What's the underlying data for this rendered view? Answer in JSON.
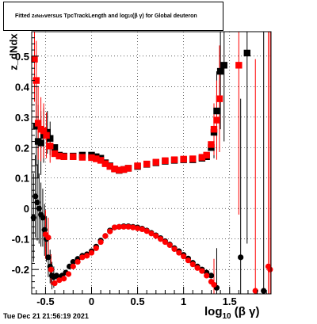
{
  "title": {
    "prefix": "Fitted  z",
    "sub1": "dNdx",
    "middle": "  versus TpcTrackLength and log",
    "sub2": "10",
    "suffix": "(β γ) for Global deuteron"
  },
  "footer": {
    "timestamp": "Tue Dec 21 21:56:19 2021"
  },
  "chart_data": {
    "type": "scatter",
    "title": "Fitted z_dNdx versus TpcTrackLength and log10(βγ) for Global deuteron",
    "xlabel_main": "log",
    "xlabel_sub": "10",
    "xlabel_rest": " (β γ)",
    "ylabel": "z_dNdx",
    "xlim": [
      -0.65,
      1.95
    ],
    "ylim": [
      -0.28,
      0.58
    ],
    "grid": true,
    "xticks": [
      {
        "v": -0.5,
        "label": "-0.5"
      },
      {
        "v": 0,
        "label": "0"
      },
      {
        "v": 0.5,
        "label": "0.5"
      },
      {
        "v": 1,
        "label": "1"
      },
      {
        "v": 1.5,
        "label": "1.5"
      }
    ],
    "yticks": [
      {
        "v": -0.2,
        "label": "-0.2"
      },
      {
        "v": -0.1,
        "label": "-0.1"
      },
      {
        "v": 0,
        "label": "0"
      },
      {
        "v": 0.1,
        "label": "0.1"
      },
      {
        "v": 0.2,
        "label": "0.2"
      },
      {
        "v": 0.3,
        "label": "0.3"
      },
      {
        "v": 0.4,
        "label": "0.4"
      },
      {
        "v": 0.5,
        "label": "0.5"
      }
    ],
    "series": [
      {
        "color": "#000000",
        "marker": "circle",
        "points": [
          [
            -0.63,
            -0.03
          ],
          [
            -0.61,
            0.04
          ],
          [
            -0.59,
            0.02
          ],
          [
            -0.57,
            0.0
          ],
          [
            -0.55,
            -0.02
          ],
          [
            -0.53,
            -0.03
          ],
          [
            -0.51,
            -0.07
          ],
          [
            -0.49,
            -0.1
          ],
          [
            -0.47,
            -0.16
          ],
          [
            -0.45,
            -0.19
          ],
          [
            -0.43,
            -0.22
          ],
          [
            -0.41,
            -0.225
          ],
          [
            -0.38,
            -0.22
          ],
          [
            -0.35,
            -0.23
          ],
          [
            -0.32,
            -0.22
          ],
          [
            -0.28,
            -0.21
          ],
          [
            -0.24,
            -0.19
          ],
          [
            -0.2,
            -0.175
          ],
          [
            -0.15,
            -0.165
          ],
          [
            -0.1,
            -0.155
          ],
          [
            -0.05,
            -0.15
          ],
          [
            0.0,
            -0.14
          ],
          [
            0.05,
            -0.125
          ],
          [
            0.1,
            -0.105
          ],
          [
            0.15,
            -0.09
          ],
          [
            0.2,
            -0.072
          ],
          [
            0.25,
            -0.062
          ],
          [
            0.3,
            -0.06
          ],
          [
            0.35,
            -0.058
          ],
          [
            0.4,
            -0.058
          ],
          [
            0.45,
            -0.06
          ],
          [
            0.5,
            -0.062
          ],
          [
            0.55,
            -0.066
          ],
          [
            0.6,
            -0.072
          ],
          [
            0.65,
            -0.08
          ],
          [
            0.7,
            -0.088
          ],
          [
            0.75,
            -0.097
          ],
          [
            0.8,
            -0.107
          ],
          [
            0.85,
            -0.118
          ],
          [
            0.9,
            -0.13
          ],
          [
            0.95,
            -0.14
          ],
          [
            1.0,
            -0.152
          ],
          [
            1.05,
            -0.164
          ],
          [
            1.1,
            -0.178
          ],
          [
            1.15,
            -0.19
          ],
          [
            1.2,
            -0.2
          ],
          [
            1.25,
            -0.21
          ],
          [
            1.3,
            -0.22
          ],
          [
            1.36,
            -0.26
          ],
          [
            1.62,
            -0.16
          ],
          [
            1.87,
            -0.27
          ]
        ]
      },
      {
        "color": "#000000",
        "marker": "square",
        "points": [
          [
            -0.6,
            0.27
          ],
          [
            -0.58,
            0.22
          ],
          [
            -0.55,
            0.215
          ],
          [
            -0.52,
            0.24
          ],
          [
            -0.48,
            0.25
          ],
          [
            -0.45,
            0.23
          ],
          [
            -0.4,
            0.2
          ],
          [
            -0.35,
            0.175
          ],
          [
            -0.3,
            0.172
          ],
          [
            -0.2,
            0.172
          ],
          [
            -0.1,
            0.175
          ],
          [
            0.0,
            0.175
          ],
          [
            0.05,
            0.17
          ],
          [
            0.1,
            0.165
          ],
          [
            0.15,
            0.15
          ],
          [
            0.2,
            0.14
          ],
          [
            0.25,
            0.13
          ],
          [
            0.3,
            0.125
          ],
          [
            0.35,
            0.128
          ],
          [
            0.4,
            0.132
          ],
          [
            0.5,
            0.138
          ],
          [
            0.6,
            0.145
          ],
          [
            0.7,
            0.15
          ],
          [
            0.8,
            0.155
          ],
          [
            0.9,
            0.158
          ],
          [
            1.0,
            0.16
          ],
          [
            1.1,
            0.16
          ],
          [
            1.2,
            0.165
          ],
          [
            1.25,
            0.17
          ],
          [
            1.3,
            0.2
          ],
          [
            1.33,
            0.25
          ],
          [
            1.36,
            0.32
          ],
          [
            1.4,
            0.45
          ],
          [
            1.44,
            0.47
          ],
          [
            1.69,
            0.51
          ]
        ]
      },
      {
        "color": "#ff0000",
        "marker": "circle",
        "points": [
          [
            -0.5,
            -0.085
          ],
          [
            -0.47,
            -0.095
          ],
          [
            -0.44,
            -0.2
          ],
          [
            -0.4,
            -0.245
          ],
          [
            -0.35,
            -0.235
          ],
          [
            -0.3,
            -0.23
          ],
          [
            -0.25,
            -0.215
          ],
          [
            -0.2,
            -0.19
          ],
          [
            -0.15,
            -0.175
          ],
          [
            -0.1,
            -0.16
          ],
          [
            -0.05,
            -0.155
          ],
          [
            0.0,
            -0.145
          ],
          [
            0.05,
            -0.13
          ],
          [
            0.1,
            -0.11
          ],
          [
            0.15,
            -0.09
          ],
          [
            0.2,
            -0.075
          ],
          [
            0.25,
            -0.062
          ],
          [
            0.3,
            -0.06
          ],
          [
            0.35,
            -0.06
          ],
          [
            0.4,
            -0.06
          ],
          [
            0.45,
            -0.062
          ],
          [
            0.5,
            -0.065
          ],
          [
            0.55,
            -0.068
          ],
          [
            0.6,
            -0.074
          ],
          [
            0.65,
            -0.082
          ],
          [
            0.7,
            -0.09
          ],
          [
            0.75,
            -0.1
          ],
          [
            0.8,
            -0.11
          ],
          [
            0.85,
            -0.12
          ],
          [
            0.9,
            -0.133
          ],
          [
            0.95,
            -0.145
          ],
          [
            1.0,
            -0.157
          ],
          [
            1.05,
            -0.17
          ],
          [
            1.1,
            -0.183
          ],
          [
            1.15,
            -0.195
          ],
          [
            1.2,
            -0.205
          ],
          [
            1.25,
            -0.22
          ],
          [
            1.3,
            -0.24
          ],
          [
            1.33,
            -0.25
          ],
          [
            1.78,
            -0.27
          ],
          [
            1.92,
            -0.19
          ],
          [
            1.94,
            -0.2
          ]
        ]
      },
      {
        "color": "#ff0000",
        "marker": "square",
        "points": [
          [
            -0.62,
            0.49
          ],
          [
            -0.6,
            0.42
          ],
          [
            -0.58,
            0.28
          ],
          [
            -0.55,
            0.26
          ],
          [
            -0.52,
            0.255
          ],
          [
            -0.49,
            0.24
          ],
          [
            -0.45,
            0.205
          ],
          [
            -0.4,
            0.18
          ],
          [
            -0.35,
            0.172
          ],
          [
            -0.3,
            0.17
          ],
          [
            -0.2,
            0.17
          ],
          [
            -0.1,
            0.168
          ],
          [
            0.0,
            0.167
          ],
          [
            0.05,
            0.163
          ],
          [
            0.1,
            0.158
          ],
          [
            0.15,
            0.147
          ],
          [
            0.2,
            0.138
          ],
          [
            0.25,
            0.13
          ],
          [
            0.3,
            0.126
          ],
          [
            0.35,
            0.128
          ],
          [
            0.4,
            0.132
          ],
          [
            0.5,
            0.14
          ],
          [
            0.6,
            0.146
          ],
          [
            0.7,
            0.152
          ],
          [
            0.8,
            0.157
          ],
          [
            0.9,
            0.16
          ],
          [
            1.0,
            0.162
          ],
          [
            1.1,
            0.163
          ],
          [
            1.2,
            0.168
          ],
          [
            1.25,
            0.175
          ],
          [
            1.3,
            0.21
          ],
          [
            1.33,
            0.26
          ],
          [
            1.36,
            0.29
          ],
          [
            1.39,
            0.36
          ],
          [
            1.6,
            0.47
          ]
        ]
      }
    ]
  }
}
